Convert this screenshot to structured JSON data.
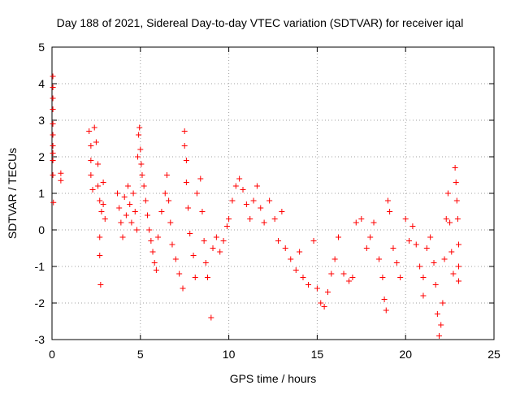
{
  "chart_data": {
    "type": "scatter",
    "title": "Day 188 of 2021, Sidereal Day-to-day VTEC variation (SDTVAR) for receiver iqal",
    "xlabel": "GPS time / hours",
    "ylabel": "SDTVAR / TECUs",
    "xlim": [
      0,
      25
    ],
    "ylim": [
      -3,
      5
    ],
    "x_ticks": [
      0,
      5,
      10,
      15,
      20,
      25
    ],
    "y_ticks": [
      -3,
      -2,
      -1,
      0,
      1,
      2,
      3,
      4,
      5
    ],
    "x_tick_labels": [
      "0",
      "5",
      "10",
      "15",
      "20",
      "25"
    ],
    "y_tick_labels": [
      "-3",
      "-2",
      "-1",
      "0",
      "1",
      "2",
      "3",
      "4",
      "5"
    ],
    "grid": true,
    "marker": "+",
    "color": "#ff0000",
    "series": [
      {
        "name": "SDTVAR",
        "points": [
          [
            0.05,
            4.2
          ],
          [
            0.05,
            3.9
          ],
          [
            0.05,
            3.6
          ],
          [
            0.05,
            3.3
          ],
          [
            0.05,
            2.9
          ],
          [
            0.05,
            2.6
          ],
          [
            0.05,
            2.3
          ],
          [
            0.05,
            2.1
          ],
          [
            0.05,
            1.9
          ],
          [
            0.05,
            1.5
          ],
          [
            0.08,
            0.75
          ],
          [
            0.5,
            1.55
          ],
          [
            0.5,
            1.35
          ],
          [
            2.1,
            2.7
          ],
          [
            2.2,
            2.3
          ],
          [
            2.2,
            1.9
          ],
          [
            2.2,
            1.5
          ],
          [
            2.3,
            1.1
          ],
          [
            2.4,
            2.8
          ],
          [
            2.5,
            2.4
          ],
          [
            2.6,
            1.8
          ],
          [
            2.6,
            1.2
          ],
          [
            2.7,
            0.8
          ],
          [
            2.8,
            0.5
          ],
          [
            2.7,
            -0.2
          ],
          [
            2.7,
            -0.7
          ],
          [
            2.75,
            -1.5
          ],
          [
            2.9,
            1.3
          ],
          [
            2.9,
            0.7
          ],
          [
            3.0,
            0.3
          ],
          [
            3.7,
            1.0
          ],
          [
            3.8,
            0.6
          ],
          [
            3.9,
            0.2
          ],
          [
            4.0,
            -0.2
          ],
          [
            4.1,
            0.9
          ],
          [
            4.2,
            0.4
          ],
          [
            4.3,
            1.2
          ],
          [
            4.4,
            0.7
          ],
          [
            4.5,
            0.2
          ],
          [
            4.6,
            1.0
          ],
          [
            4.7,
            0.5
          ],
          [
            4.8,
            0.0
          ],
          [
            4.85,
            2.0
          ],
          [
            4.9,
            2.6
          ],
          [
            4.95,
            2.8
          ],
          [
            5.0,
            2.2
          ],
          [
            5.05,
            1.8
          ],
          [
            5.1,
            1.5
          ],
          [
            5.2,
            1.2
          ],
          [
            5.3,
            0.8
          ],
          [
            5.4,
            0.4
          ],
          [
            5.5,
            0.0
          ],
          [
            5.6,
            -0.3
          ],
          [
            5.7,
            -0.6
          ],
          [
            5.8,
            -0.9
          ],
          [
            5.9,
            -1.1
          ],
          [
            6.0,
            -0.2
          ],
          [
            6.2,
            0.5
          ],
          [
            6.4,
            1.0
          ],
          [
            6.5,
            1.5
          ],
          [
            6.6,
            0.8
          ],
          [
            6.7,
            0.2
          ],
          [
            6.8,
            -0.4
          ],
          [
            7.0,
            -0.8
          ],
          [
            7.2,
            -1.2
          ],
          [
            7.4,
            -1.6
          ],
          [
            7.5,
            2.7
          ],
          [
            7.5,
            2.3
          ],
          [
            7.6,
            1.9
          ],
          [
            7.6,
            1.3
          ],
          [
            7.7,
            0.6
          ],
          [
            7.8,
            -0.1
          ],
          [
            8.0,
            -0.7
          ],
          [
            8.1,
            -1.3
          ],
          [
            8.2,
            1.0
          ],
          [
            8.4,
            1.4
          ],
          [
            8.5,
            0.5
          ],
          [
            8.6,
            -0.3
          ],
          [
            8.7,
            -0.9
          ],
          [
            8.8,
            -1.3
          ],
          [
            9.0,
            -2.4
          ],
          [
            9.1,
            -0.5
          ],
          [
            9.3,
            -0.2
          ],
          [
            9.5,
            -0.6
          ],
          [
            9.7,
            -0.3
          ],
          [
            9.9,
            0.1
          ],
          [
            10.0,
            0.3
          ],
          [
            10.2,
            0.8
          ],
          [
            10.4,
            1.2
          ],
          [
            10.6,
            1.4
          ],
          [
            10.8,
            1.1
          ],
          [
            11.0,
            0.7
          ],
          [
            11.2,
            0.3
          ],
          [
            11.4,
            0.8
          ],
          [
            11.6,
            1.2
          ],
          [
            11.8,
            0.6
          ],
          [
            12.0,
            0.2
          ],
          [
            12.3,
            0.8
          ],
          [
            12.6,
            0.3
          ],
          [
            12.8,
            -0.3
          ],
          [
            13.0,
            0.5
          ],
          [
            13.2,
            -0.5
          ],
          [
            13.5,
            -0.8
          ],
          [
            13.8,
            -1.1
          ],
          [
            14.0,
            -0.6
          ],
          [
            14.2,
            -1.3
          ],
          [
            14.5,
            -1.5
          ],
          [
            14.8,
            -0.3
          ],
          [
            15.0,
            -1.6
          ],
          [
            15.2,
            -2.0
          ],
          [
            15.4,
            -2.1
          ],
          [
            15.6,
            -1.7
          ],
          [
            15.8,
            -1.2
          ],
          [
            16.0,
            -0.8
          ],
          [
            16.2,
            -0.2
          ],
          [
            16.5,
            -1.2
          ],
          [
            16.8,
            -1.4
          ],
          [
            17.0,
            -1.3
          ],
          [
            17.2,
            0.2
          ],
          [
            17.5,
            0.3
          ],
          [
            17.8,
            -0.5
          ],
          [
            18.0,
            -0.2
          ],
          [
            18.2,
            0.2
          ],
          [
            18.5,
            -0.8
          ],
          [
            18.7,
            -1.3
          ],
          [
            18.8,
            -1.9
          ],
          [
            18.9,
            -2.2
          ],
          [
            19.0,
            0.8
          ],
          [
            19.1,
            0.5
          ],
          [
            19.3,
            -0.5
          ],
          [
            19.5,
            -0.9
          ],
          [
            19.7,
            -1.3
          ],
          [
            20.0,
            0.3
          ],
          [
            20.2,
            -0.3
          ],
          [
            20.4,
            0.1
          ],
          [
            20.6,
            -0.4
          ],
          [
            20.8,
            -1.0
          ],
          [
            21.0,
            -1.3
          ],
          [
            21.0,
            -1.8
          ],
          [
            21.2,
            -0.5
          ],
          [
            21.4,
            -0.2
          ],
          [
            21.6,
            -0.9
          ],
          [
            21.7,
            -1.5
          ],
          [
            21.8,
            -2.3
          ],
          [
            21.9,
            -2.9
          ],
          [
            22.0,
            -2.6
          ],
          [
            22.1,
            -2.0
          ],
          [
            22.2,
            -0.8
          ],
          [
            22.3,
            0.3
          ],
          [
            22.4,
            1.0
          ],
          [
            22.5,
            0.2
          ],
          [
            22.6,
            -0.6
          ],
          [
            22.7,
            -1.2
          ],
          [
            22.8,
            1.7
          ],
          [
            22.85,
            1.3
          ],
          [
            22.9,
            0.8
          ],
          [
            22.95,
            0.3
          ],
          [
            23.0,
            -0.4
          ],
          [
            23.0,
            -1.0
          ],
          [
            23.0,
            -1.4
          ]
        ]
      }
    ]
  }
}
